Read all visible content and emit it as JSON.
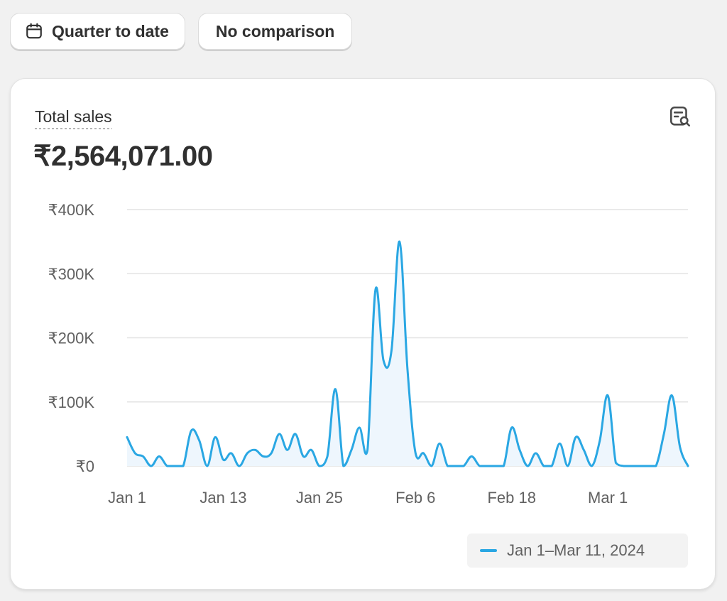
{
  "toolbar": {
    "date_range_label": "Quarter to date",
    "date_range_icon": "calendar-icon",
    "comparison_label": "No comparison"
  },
  "card": {
    "title": "Total sales",
    "value": "₹2,564,071.00",
    "explore_icon": "chart-search-icon"
  },
  "colors": {
    "line": "#2aa7e3",
    "area": "#eef6fd",
    "grid": "#e3e3e3",
    "text": "#303030",
    "muted": "#616161"
  },
  "chart_data": {
    "type": "line",
    "title": "",
    "xlabel": "",
    "ylabel": "",
    "ylim": [
      0,
      400000
    ],
    "y_ticks": [
      0,
      100000,
      200000,
      300000,
      400000
    ],
    "y_tick_labels": [
      "₹0",
      "₹100K",
      "₹200K",
      "₹300K",
      "₹400K"
    ],
    "x_tick_labels": [
      {
        "day": 1,
        "label": "Jan 1"
      },
      {
        "day": 13,
        "label": "Jan 13"
      },
      {
        "day": 25,
        "label": "Jan 25"
      },
      {
        "day": 37,
        "label": "Feb 6"
      },
      {
        "day": 49,
        "label": "Feb 18"
      },
      {
        "day": 61,
        "label": "Mar 1"
      }
    ],
    "x_domain": [
      1,
      71
    ],
    "grid": true,
    "legend_position": "bottom-right",
    "series": [
      {
        "name": "Jan 1–Mar 11, 2024",
        "x": [
          1,
          2,
          3,
          4,
          5,
          6,
          7,
          8,
          9,
          10,
          11,
          12,
          13,
          14,
          15,
          16,
          17,
          18,
          19,
          20,
          21,
          22,
          23,
          24,
          25,
          26,
          27,
          28,
          29,
          30,
          31,
          32,
          33,
          34,
          35,
          36,
          37,
          38,
          39,
          40,
          41,
          42,
          43,
          44,
          45,
          46,
          47,
          48,
          49,
          50,
          51,
          52,
          53,
          54,
          55,
          56,
          57,
          58,
          59,
          60,
          61,
          62,
          63,
          64,
          65,
          66,
          67,
          68,
          69,
          70,
          71
        ],
        "values": [
          45000,
          20000,
          15000,
          0,
          15000,
          0,
          0,
          0,
          55000,
          40000,
          0,
          45000,
          10000,
          20000,
          0,
          20000,
          25000,
          15000,
          20000,
          50000,
          25000,
          50000,
          15000,
          25000,
          0,
          15000,
          120000,
          0,
          25000,
          60000,
          25000,
          275000,
          165000,
          180000,
          350000,
          150000,
          20000,
          20000,
          0,
          35000,
          0,
          0,
          0,
          15000,
          0,
          0,
          0,
          0,
          60000,
          25000,
          0,
          20000,
          0,
          0,
          35000,
          0,
          45000,
          25000,
          0,
          40000,
          110000,
          5000,
          0,
          0,
          0,
          0,
          0,
          50000,
          110000,
          30000,
          0
        ]
      }
    ]
  }
}
